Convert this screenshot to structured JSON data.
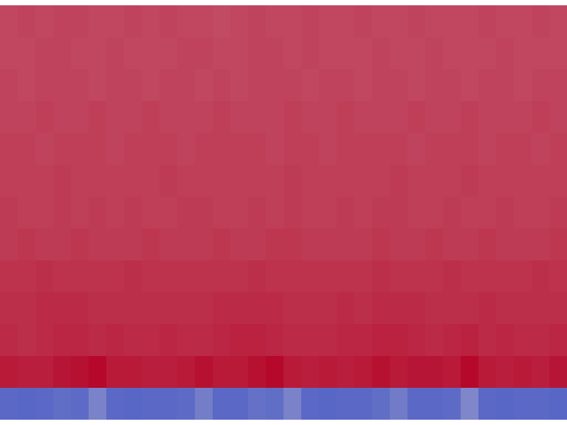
{
  "chart_data": {
    "type": "heatmap",
    "tick_labels": false,
    "zlim": [
      0,
      1
    ],
    "cells": [
      [
        0.84,
        0.85,
        0.84,
        0.85,
        0.85,
        0.84,
        0.84,
        0.85,
        0.84,
        0.85,
        0.84,
        0.84,
        0.83,
        0.84,
        0.85,
        0.84,
        0.84,
        0.85,
        0.84,
        0.84,
        0.85,
        0.84,
        0.84,
        0.85,
        0.84,
        0.84,
        0.84,
        0.85,
        0.84,
        0.84,
        0.85,
        0.84
      ],
      [
        0.84,
        0.84,
        0.85,
        0.85,
        0.84,
        0.84,
        0.85,
        0.84,
        0.84,
        0.84,
        0.85,
        0.85,
        0.84,
        0.84,
        0.85,
        0.85,
        0.84,
        0.85,
        0.84,
        0.84,
        0.84,
        0.85,
        0.84,
        0.84,
        0.85,
        0.84,
        0.84,
        0.84,
        0.85,
        0.84,
        0.84,
        0.84
      ],
      [
        0.85,
        0.84,
        0.85,
        0.85,
        0.85,
        0.84,
        0.85,
        0.85,
        0.84,
        0.85,
        0.85,
        0.84,
        0.85,
        0.84,
        0.85,
        0.85,
        0.85,
        0.84,
        0.85,
        0.85,
        0.84,
        0.85,
        0.85,
        0.84,
        0.85,
        0.85,
        0.84,
        0.85,
        0.85,
        0.84,
        0.85,
        0.85
      ],
      [
        0.85,
        0.85,
        0.86,
        0.85,
        0.85,
        0.86,
        0.85,
        0.85,
        0.86,
        0.85,
        0.85,
        0.85,
        0.86,
        0.85,
        0.85,
        0.85,
        0.86,
        0.85,
        0.85,
        0.86,
        0.85,
        0.85,
        0.85,
        0.86,
        0.85,
        0.85,
        0.86,
        0.85,
        0.85,
        0.85,
        0.86,
        0.85
      ],
      [
        0.86,
        0.86,
        0.85,
        0.86,
        0.86,
        0.86,
        0.85,
        0.86,
        0.86,
        0.86,
        0.85,
        0.86,
        0.86,
        0.86,
        0.86,
        0.85,
        0.86,
        0.86,
        0.85,
        0.86,
        0.86,
        0.86,
        0.86,
        0.85,
        0.86,
        0.86,
        0.86,
        0.85,
        0.86,
        0.86,
        0.85,
        0.86
      ],
      [
        0.86,
        0.86,
        0.86,
        0.87,
        0.86,
        0.86,
        0.86,
        0.86,
        0.86,
        0.87,
        0.86,
        0.86,
        0.86,
        0.86,
        0.86,
        0.86,
        0.87,
        0.86,
        0.86,
        0.86,
        0.86,
        0.86,
        0.87,
        0.86,
        0.86,
        0.86,
        0.87,
        0.86,
        0.86,
        0.86,
        0.86,
        0.86
      ],
      [
        0.87,
        0.86,
        0.86,
        0.87,
        0.86,
        0.87,
        0.86,
        0.87,
        0.86,
        0.86,
        0.87,
        0.87,
        0.86,
        0.86,
        0.87,
        0.86,
        0.87,
        0.86,
        0.86,
        0.87,
        0.86,
        0.87,
        0.87,
        0.86,
        0.86,
        0.87,
        0.86,
        0.86,
        0.87,
        0.86,
        0.86,
        0.87
      ],
      [
        0.87,
        0.88,
        0.87,
        0.87,
        0.88,
        0.87,
        0.87,
        0.87,
        0.88,
        0.87,
        0.87,
        0.87,
        0.88,
        0.87,
        0.87,
        0.88,
        0.88,
        0.87,
        0.87,
        0.87,
        0.87,
        0.88,
        0.87,
        0.87,
        0.88,
        0.87,
        0.87,
        0.88,
        0.87,
        0.87,
        0.87,
        0.88
      ],
      [
        0.89,
        0.89,
        0.9,
        0.89,
        0.89,
        0.89,
        0.89,
        0.9,
        0.89,
        0.89,
        0.89,
        0.89,
        0.89,
        0.89,
        0.9,
        0.89,
        0.89,
        0.89,
        0.89,
        0.89,
        0.89,
        0.9,
        0.89,
        0.89,
        0.89,
        0.9,
        0.89,
        0.89,
        0.89,
        0.89,
        0.9,
        0.89
      ],
      [
        0.9,
        0.9,
        0.91,
        0.91,
        0.91,
        0.9,
        0.9,
        0.9,
        0.9,
        0.9,
        0.9,
        0.9,
        0.91,
        0.91,
        0.91,
        0.91,
        0.9,
        0.9,
        0.9,
        0.91,
        0.9,
        0.91,
        0.91,
        0.91,
        0.9,
        0.9,
        0.9,
        0.91,
        0.9,
        0.9,
        0.9,
        0.9
      ],
      [
        0.91,
        0.9,
        0.91,
        0.92,
        0.92,
        0.91,
        0.92,
        0.91,
        0.91,
        0.92,
        0.91,
        0.91,
        0.92,
        0.93,
        0.93,
        0.92,
        0.91,
        0.91,
        0.91,
        0.92,
        0.92,
        0.93,
        0.93,
        0.92,
        0.91,
        0.92,
        0.93,
        0.91,
        0.92,
        0.91,
        0.91,
        0.92
      ],
      [
        0.95,
        0.94,
        0.94,
        0.96,
        0.97,
        0.99,
        0.95,
        0.95,
        0.94,
        0.94,
        0.95,
        0.97,
        0.95,
        0.95,
        0.97,
        0.99,
        0.95,
        0.94,
        0.95,
        0.94,
        0.95,
        0.97,
        0.95,
        0.96,
        0.96,
        0.95,
        0.99,
        0.95,
        0.94,
        0.95,
        0.94,
        0.96
      ],
      [
        0.1,
        0.09,
        0.1,
        0.12,
        0.11,
        0.2,
        0.1,
        0.09,
        0.1,
        0.1,
        0.11,
        0.18,
        0.1,
        0.1,
        0.13,
        0.12,
        0.2,
        0.1,
        0.09,
        0.1,
        0.1,
        0.12,
        0.17,
        0.1,
        0.1,
        0.11,
        0.22,
        0.1,
        0.09,
        0.1,
        0.1,
        0.09
      ]
    ]
  }
}
